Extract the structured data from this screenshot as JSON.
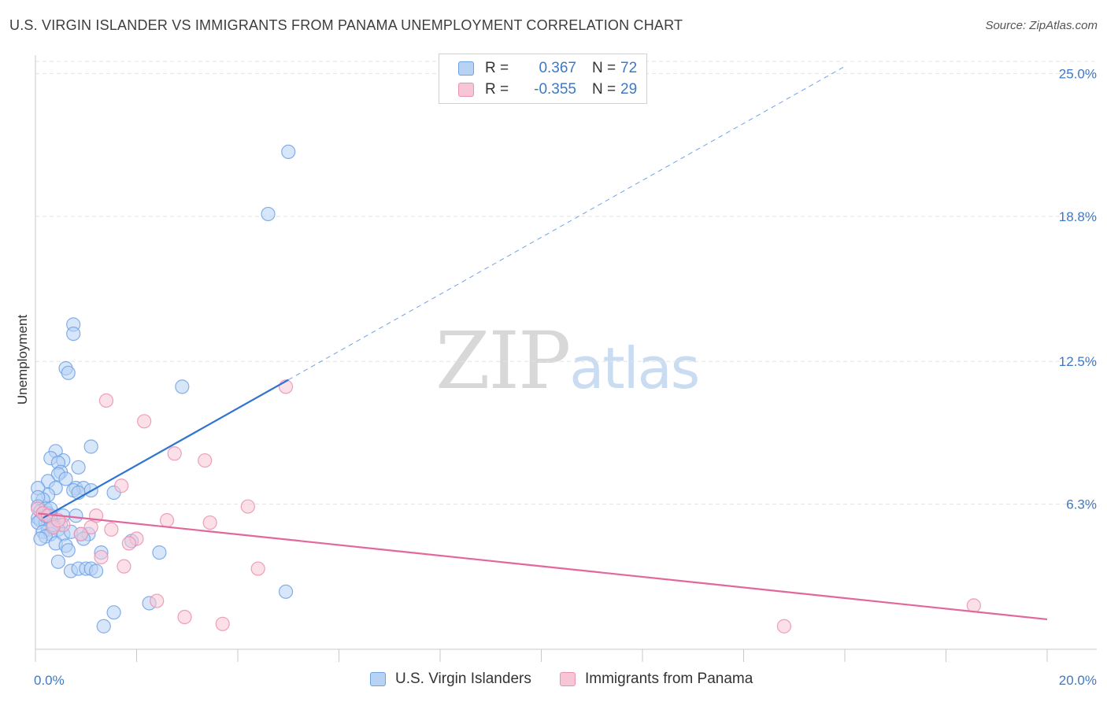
{
  "title": "U.S. VIRGIN ISLANDER VS IMMIGRANTS FROM PANAMA UNEMPLOYMENT CORRELATION CHART",
  "source": "Source: ZipAtlas.com",
  "watermark": {
    "zip": "ZIP",
    "atlas": "atlas"
  },
  "legend_top": [
    {
      "r_label": "R =",
      "r_value": "0.367",
      "n_label": "N =",
      "n_value": "72"
    },
    {
      "r_label": "R =",
      "r_value": "-0.355",
      "n_label": "N =",
      "n_value": "29"
    }
  ],
  "colors": {
    "blue_fill": "#b8d2f4",
    "blue_stroke": "#6ea2e6",
    "blue_line": "#2f74d0",
    "pink_fill": "#f7c6d6",
    "pink_stroke": "#ec8fb0",
    "pink_line": "#e2679a",
    "axis_text": "#3f78c4",
    "grid": "#e3e3e3"
  },
  "chart_data": {
    "type": "scatter",
    "title": "U.S. VIRGIN ISLANDER VS IMMIGRANTS FROM PANAMA UNEMPLOYMENT CORRELATION CHART",
    "xlabel": "",
    "ylabel": "Unemployment",
    "xlim": [
      0,
      20
    ],
    "ylim": [
      0,
      25.8
    ],
    "x_tick_labels": [
      "0.0%",
      "20.0%"
    ],
    "y_ticks": [
      6.3,
      12.5,
      18.8,
      25.0
    ],
    "y_tick_labels": [
      "6.3%",
      "12.5%",
      "18.8%",
      "25.0%"
    ],
    "grid": true,
    "series": [
      {
        "name": "U.S. Virgin Islanders",
        "r": 0.367,
        "n": 72,
        "trend": {
          "x0": 0.15,
          "y0": 5.7,
          "x1": 5.0,
          "y1": 11.7,
          "dash_to_x": 16.0
        },
        "points": [
          [
            5.0,
            21.6
          ],
          [
            4.6,
            18.9
          ],
          [
            0.75,
            14.1
          ],
          [
            0.75,
            13.7
          ],
          [
            0.6,
            12.2
          ],
          [
            0.65,
            12.0
          ],
          [
            2.9,
            11.4
          ],
          [
            1.1,
            8.8
          ],
          [
            0.4,
            8.6
          ],
          [
            0.3,
            8.3
          ],
          [
            0.55,
            8.2
          ],
          [
            0.45,
            8.1
          ],
          [
            0.85,
            7.9
          ],
          [
            0.5,
            7.7
          ],
          [
            0.45,
            7.6
          ],
          [
            0.25,
            7.3
          ],
          [
            0.6,
            7.4
          ],
          [
            0.4,
            7.0
          ],
          [
            0.8,
            7.0
          ],
          [
            0.95,
            7.0
          ],
          [
            0.75,
            6.9
          ],
          [
            0.85,
            6.8
          ],
          [
            1.1,
            6.9
          ],
          [
            1.55,
            6.8
          ],
          [
            0.25,
            6.7
          ],
          [
            0.15,
            6.5
          ],
          [
            0.05,
            7.0
          ],
          [
            0.05,
            6.6
          ],
          [
            0.05,
            6.2
          ],
          [
            0.1,
            6.0
          ],
          [
            0.2,
            6.1
          ],
          [
            0.25,
            5.9
          ],
          [
            0.15,
            5.9
          ],
          [
            0.3,
            5.8
          ],
          [
            0.05,
            5.7
          ],
          [
            0.1,
            5.6
          ],
          [
            0.2,
            5.5
          ],
          [
            0.05,
            5.5
          ],
          [
            0.55,
            5.8
          ],
          [
            0.8,
            5.8
          ],
          [
            0.35,
            5.3
          ],
          [
            0.5,
            5.4
          ],
          [
            0.45,
            5.2
          ],
          [
            0.25,
            5.2
          ],
          [
            0.15,
            5.1
          ],
          [
            0.3,
            5.0
          ],
          [
            0.55,
            5.0
          ],
          [
            0.7,
            5.1
          ],
          [
            0.9,
            5.0
          ],
          [
            1.05,
            5.0
          ],
          [
            0.2,
            4.9
          ],
          [
            0.1,
            4.8
          ],
          [
            0.4,
            4.6
          ],
          [
            0.95,
            4.8
          ],
          [
            0.6,
            4.5
          ],
          [
            0.65,
            4.3
          ],
          [
            1.9,
            4.7
          ],
          [
            2.45,
            4.2
          ],
          [
            1.3,
            4.2
          ],
          [
            0.45,
            3.8
          ],
          [
            0.7,
            3.4
          ],
          [
            0.85,
            3.5
          ],
          [
            1.0,
            3.5
          ],
          [
            1.1,
            3.5
          ],
          [
            1.2,
            3.4
          ],
          [
            4.95,
            2.5
          ],
          [
            2.25,
            2.0
          ],
          [
            1.55,
            1.6
          ],
          [
            1.35,
            1.0
          ],
          [
            0.3,
            6.1
          ],
          [
            0.2,
            5.8
          ],
          [
            0.35,
            5.4
          ]
        ]
      },
      {
        "name": "Immigrants from Panama",
        "r": -0.355,
        "n": 29,
        "trend": {
          "x0": 0.05,
          "y0": 5.9,
          "x1": 20.0,
          "y1": 1.3
        },
        "points": [
          [
            4.95,
            11.4
          ],
          [
            1.4,
            10.8
          ],
          [
            2.15,
            9.9
          ],
          [
            2.75,
            8.5
          ],
          [
            3.35,
            8.2
          ],
          [
            1.7,
            7.1
          ],
          [
            4.2,
            6.2
          ],
          [
            0.05,
            6.1
          ],
          [
            0.15,
            5.9
          ],
          [
            0.25,
            5.8
          ],
          [
            1.2,
            5.8
          ],
          [
            2.6,
            5.6
          ],
          [
            3.45,
            5.5
          ],
          [
            0.55,
            5.4
          ],
          [
            1.1,
            5.3
          ],
          [
            0.35,
            5.3
          ],
          [
            1.5,
            5.2
          ],
          [
            0.9,
            5.0
          ],
          [
            2.0,
            4.8
          ],
          [
            1.85,
            4.6
          ],
          [
            1.3,
            4.0
          ],
          [
            1.75,
            3.6
          ],
          [
            4.4,
            3.5
          ],
          [
            2.4,
            2.1
          ],
          [
            2.95,
            1.4
          ],
          [
            3.7,
            1.1
          ],
          [
            14.8,
            1.0
          ],
          [
            18.55,
            1.9
          ],
          [
            0.45,
            5.6
          ]
        ]
      }
    ]
  }
}
